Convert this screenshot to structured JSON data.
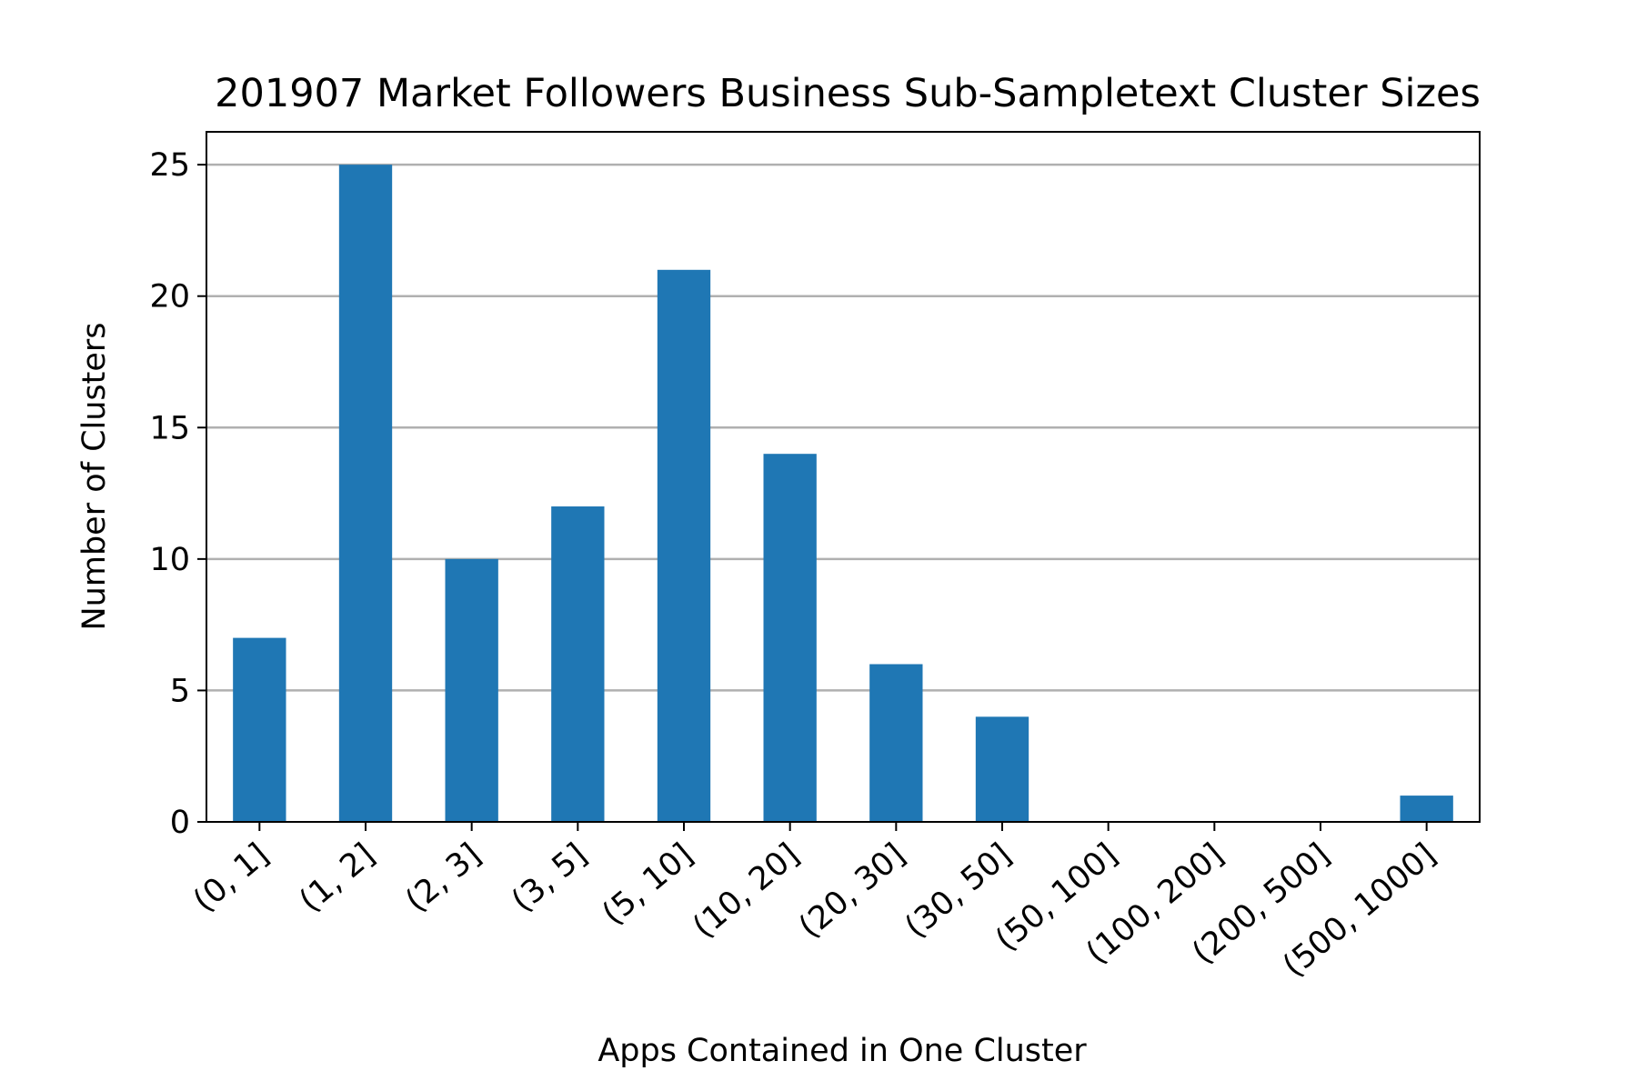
{
  "chart_data": {
    "type": "bar",
    "title": "201907 Market Followers Business Sub-Sampletext Cluster Sizes",
    "xlabel": "Apps Contained in One Cluster",
    "ylabel": "Number of Clusters",
    "categories": [
      "(0, 1]",
      "(1, 2]",
      "(2, 3]",
      "(3, 5]",
      "(5, 10]",
      "(10, 20]",
      "(20, 30]",
      "(30, 50]",
      "(50, 100]",
      "(100, 200]",
      "(200, 500]",
      "(500, 1000]"
    ],
    "values": [
      7,
      25,
      10,
      12,
      21,
      14,
      6,
      4,
      0,
      0,
      0,
      1
    ],
    "ylim": [
      0,
      26.25
    ],
    "yticks": [
      0,
      5,
      10,
      15,
      20,
      25
    ],
    "grid": "y-major",
    "bar_color": "#1f77b4",
    "grid_color": "#b0b0b0"
  }
}
